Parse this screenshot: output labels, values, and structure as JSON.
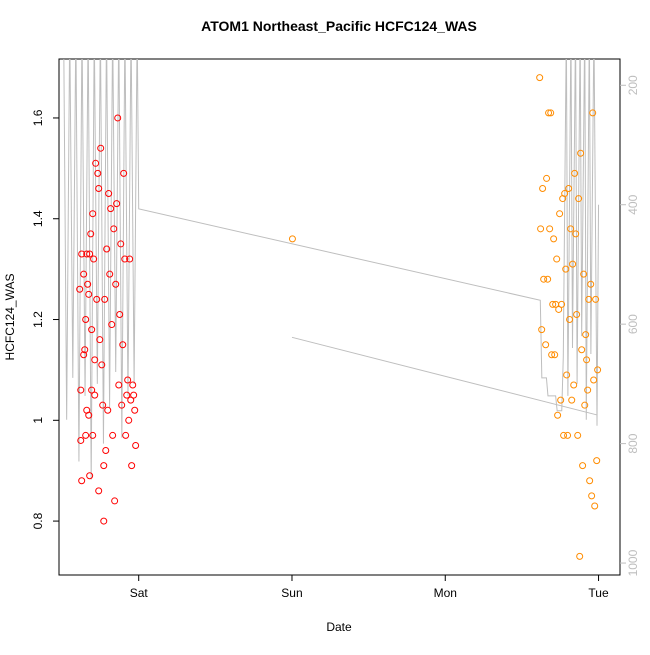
{
  "chart_data": {
    "type": "scatter",
    "title": "ATOM1 Northeast_Pacific HCFC124_WAS",
    "x_label": "Date",
    "y_label": "HCFC124_WAS",
    "xlim": [
      -0.52,
      3.14
    ],
    "xticks": [
      {
        "value": 0,
        "label": "Sat"
      },
      {
        "value": 1,
        "label": "Sun"
      },
      {
        "value": 2,
        "label": "Mon"
      },
      {
        "value": 3,
        "label": "Tue"
      }
    ],
    "ylim": [
      0.693,
      1.717
    ],
    "yticks": [
      0.8,
      1.0,
      1.2,
      1.4,
      1.6
    ],
    "y2lim": [
      1020,
      156
    ],
    "y2ticks": [
      200,
      400,
      600,
      800,
      1000
    ],
    "series": [
      {
        "color": "#ff0000",
        "mode": "points",
        "x": [
          -0.385,
          -0.378,
          -0.378,
          -0.372,
          -0.372,
          -0.359,
          -0.359,
          -0.352,
          -0.346,
          -0.346,
          -0.339,
          -0.339,
          -0.333,
          -0.326,
          -0.326,
          -0.32,
          -0.32,
          -0.313,
          -0.307,
          -0.307,
          -0.3,
          -0.3,
          -0.294,
          -0.287,
          -0.287,
          -0.281,
          -0.274,
          -0.267,
          -0.261,
          -0.261,
          -0.254,
          -0.248,
          -0.241,
          -0.235,
          -0.228,
          -0.228,
          -0.222,
          -0.215,
          -0.209,
          -0.202,
          -0.196,
          -0.189,
          -0.183,
          -0.176,
          -0.17,
          -0.163,
          -0.157,
          -0.15,
          -0.144,
          -0.137,
          -0.13,
          -0.124,
          -0.117,
          -0.111,
          -0.104,
          -0.098,
          -0.091,
          -0.085,
          -0.078,
          -0.072,
          -0.065,
          -0.059,
          -0.052,
          -0.046,
          -0.039,
          -0.033,
          -0.026,
          -0.02
        ],
        "values": [
          1.26,
          1.06,
          0.96,
          1.33,
          0.88,
          1.29,
          1.13,
          1.14,
          1.2,
          0.97,
          1.33,
          1.02,
          1.27,
          1.25,
          1.01,
          1.33,
          0.89,
          1.37,
          1.18,
          1.06,
          1.41,
          0.97,
          1.32,
          1.12,
          1.05,
          1.51,
          1.24,
          1.49,
          1.46,
          0.86,
          1.16,
          1.54,
          1.11,
          1.03,
          0.91,
          0.8,
          1.24,
          0.94,
          1.34,
          1.02,
          1.45,
          1.29,
          1.42,
          1.19,
          0.97,
          1.38,
          0.84,
          1.27,
          1.43,
          1.6,
          1.07,
          1.21,
          1.35,
          1.03,
          1.15,
          1.49,
          1.32,
          0.97,
          1.05,
          1.08,
          1.0,
          1.32,
          1.04,
          0.91,
          1.07,
          1.05,
          1.02,
          0.95
        ]
      },
      {
        "color": "#ff8c00",
        "mode": "points",
        "x": [
          1.003,
          2.616,
          2.622,
          2.629,
          2.635,
          2.642,
          2.655,
          2.661,
          2.668,
          2.674,
          2.681,
          2.688,
          2.694,
          2.701,
          2.707,
          2.714,
          2.72,
          2.727,
          2.733,
          2.74,
          2.746,
          2.753,
          2.759,
          2.766,
          2.772,
          2.779,
          2.786,
          2.792,
          2.798,
          2.805,
          2.811,
          2.818,
          2.825,
          2.831,
          2.838,
          2.844,
          2.851,
          2.857,
          2.864,
          2.87,
          2.877,
          2.883,
          2.89,
          2.896,
          2.903,
          2.91,
          2.916,
          2.922,
          2.929,
          2.936,
          2.942,
          2.949,
          2.955,
          2.962,
          2.968,
          2.975,
          2.981,
          2.988,
          2.994
        ],
        "values": [
          1.36,
          1.68,
          1.38,
          1.18,
          1.46,
          1.28,
          1.15,
          1.48,
          1.28,
          1.61,
          1.38,
          1.61,
          1.13,
          1.23,
          1.36,
          1.13,
          1.23,
          1.32,
          1.01,
          1.22,
          1.41,
          1.04,
          1.23,
          1.44,
          0.97,
          1.45,
          1.3,
          1.09,
          0.97,
          1.46,
          1.2,
          1.38,
          1.04,
          1.31,
          1.07,
          1.49,
          1.37,
          1.21,
          0.97,
          1.44,
          0.73,
          1.53,
          1.14,
          0.91,
          1.29,
          1.03,
          1.17,
          1.12,
          1.06,
          1.24,
          0.88,
          1.27,
          0.85,
          1.61,
          1.08,
          0.83,
          1.24,
          0.92,
          1.1
        ]
      },
      {
        "color": "#bebebe",
        "mode": "line",
        "axis": "y2",
        "x": [
          -0.49,
          -0.47,
          -0.45,
          -0.43,
          -0.41,
          -0.39,
          -0.37,
          -0.35,
          -0.33,
          -0.31,
          -0.29,
          -0.27,
          -0.25,
          -0.23,
          -0.21,
          -0.19,
          -0.17,
          -0.15,
          -0.13,
          -0.11,
          -0.09,
          -0.07,
          -0.05,
          -0.03,
          -0.01,
          0.0,
          2.62,
          2.63,
          2.66,
          2.67,
          2.72,
          2.73,
          2.76,
          2.77,
          2.79,
          2.8,
          2.82,
          2.83,
          2.85,
          2.86,
          2.88,
          2.89,
          2.91,
          2.92,
          2.94,
          2.95,
          2.97,
          2.99,
          3.0,
          null,
          1.0,
          2.99
        ],
        "values": [
          100,
          760,
          100,
          690,
          100,
          830,
          100,
          720,
          100,
          860,
          100,
          700,
          100,
          800,
          100,
          740,
          100,
          680,
          100,
          790,
          100,
          720,
          100,
          700,
          100,
          407,
          560,
          690,
          690,
          720,
          720,
          745,
          745,
          655,
          100,
          720,
          100,
          640,
          100,
          700,
          100,
          620,
          100,
          760,
          100,
          650,
          100,
          770,
          400,
          null,
          622,
          752
        ]
      }
    ]
  }
}
